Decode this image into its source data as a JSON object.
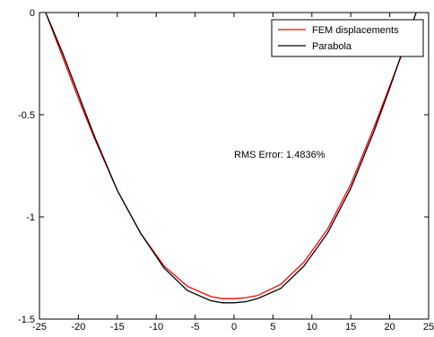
{
  "chart_data": {
    "type": "line",
    "title": "",
    "xlabel": "",
    "ylabel": "",
    "xlim": [
      -25,
      25
    ],
    "ylim": [
      -1.5,
      0
    ],
    "xticks": [
      -25,
      -20,
      -15,
      -10,
      -5,
      0,
      5,
      10,
      15,
      20,
      25
    ],
    "xtick_labels": [
      "-25",
      "-20",
      "-15",
      "-10",
      "-5",
      "0",
      "5",
      "10",
      "15",
      "20",
      "25"
    ],
    "yticks": [
      0,
      -0.5,
      -1,
      -1.5
    ],
    "ytick_labels": [
      "0",
      "-0.5",
      "-1",
      "-1.5"
    ],
    "grid": false,
    "legend_position": "top-right",
    "annotation": "RMS Error: 1.4836%",
    "series": [
      {
        "name": "FEM displacements",
        "color": "#ff0000",
        "x": [
          -24,
          -22,
          -20,
          -18,
          -15,
          -12,
          -9,
          -6,
          -3,
          -1.5,
          0,
          1.5,
          3,
          6,
          9,
          12,
          15,
          18,
          20,
          22,
          23
        ],
        "y": [
          -0.02,
          -0.22,
          -0.42,
          -0.61,
          -0.87,
          -1.08,
          -1.24,
          -1.34,
          -1.39,
          -1.4,
          -1.4,
          -1.395,
          -1.385,
          -1.33,
          -1.22,
          -1.06,
          -0.84,
          -0.56,
          -0.36,
          -0.16,
          -0.05
        ]
      },
      {
        "name": "Parabola",
        "color": "#000000",
        "x": [
          -24.2,
          -22,
          -20,
          -18,
          -15,
          -12,
          -9,
          -6,
          -3,
          -1.5,
          0,
          1.5,
          3,
          6,
          9,
          12,
          15,
          18,
          20,
          22,
          23.4
        ],
        "y": [
          0,
          -0.2,
          -0.4,
          -0.6,
          -0.87,
          -1.08,
          -1.25,
          -1.36,
          -1.41,
          -1.42,
          -1.42,
          -1.415,
          -1.4,
          -1.35,
          -1.24,
          -1.08,
          -0.86,
          -0.58,
          -0.37,
          -0.15,
          0
        ]
      }
    ]
  }
}
